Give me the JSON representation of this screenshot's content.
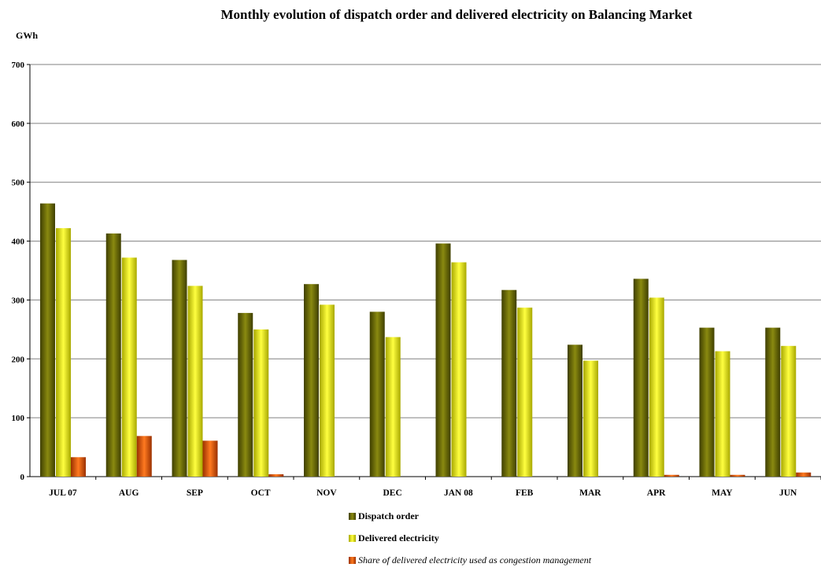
{
  "chart_data": {
    "type": "bar",
    "title": "Monthly evolution of dispatch order and delivered electricity on Balancing Market",
    "ylabel": "GWh",
    "xlabel": "",
    "ylim": [
      0,
      700
    ],
    "yticks": [
      "0",
      "100",
      "200",
      "300",
      "400",
      "500",
      "600",
      "700"
    ],
    "grid": true,
    "legend_position": "bottom",
    "categories": [
      "JUL 07",
      "AUG",
      "SEP",
      "OCT",
      "NOV",
      "DEC",
      "JAN 08",
      "FEB",
      "MAR",
      "APR",
      "MAY",
      "JUN"
    ],
    "series": [
      {
        "name": "Dispatch order",
        "color": "#6b6b00",
        "values": [
          464,
          413,
          368,
          278,
          327,
          280,
          396,
          317,
          224,
          336,
          253,
          253
        ]
      },
      {
        "name": "Delivered electricity",
        "color": "#f2f200",
        "values": [
          422,
          372,
          324,
          250,
          292,
          237,
          364,
          287,
          197,
          304,
          213,
          222
        ]
      },
      {
        "name": "Share of delivered electricity used as congestion management",
        "color": "#e55400",
        "values": [
          33,
          69,
          61,
          4,
          0,
          0,
          0,
          0,
          0,
          3,
          3,
          7
        ]
      }
    ]
  }
}
